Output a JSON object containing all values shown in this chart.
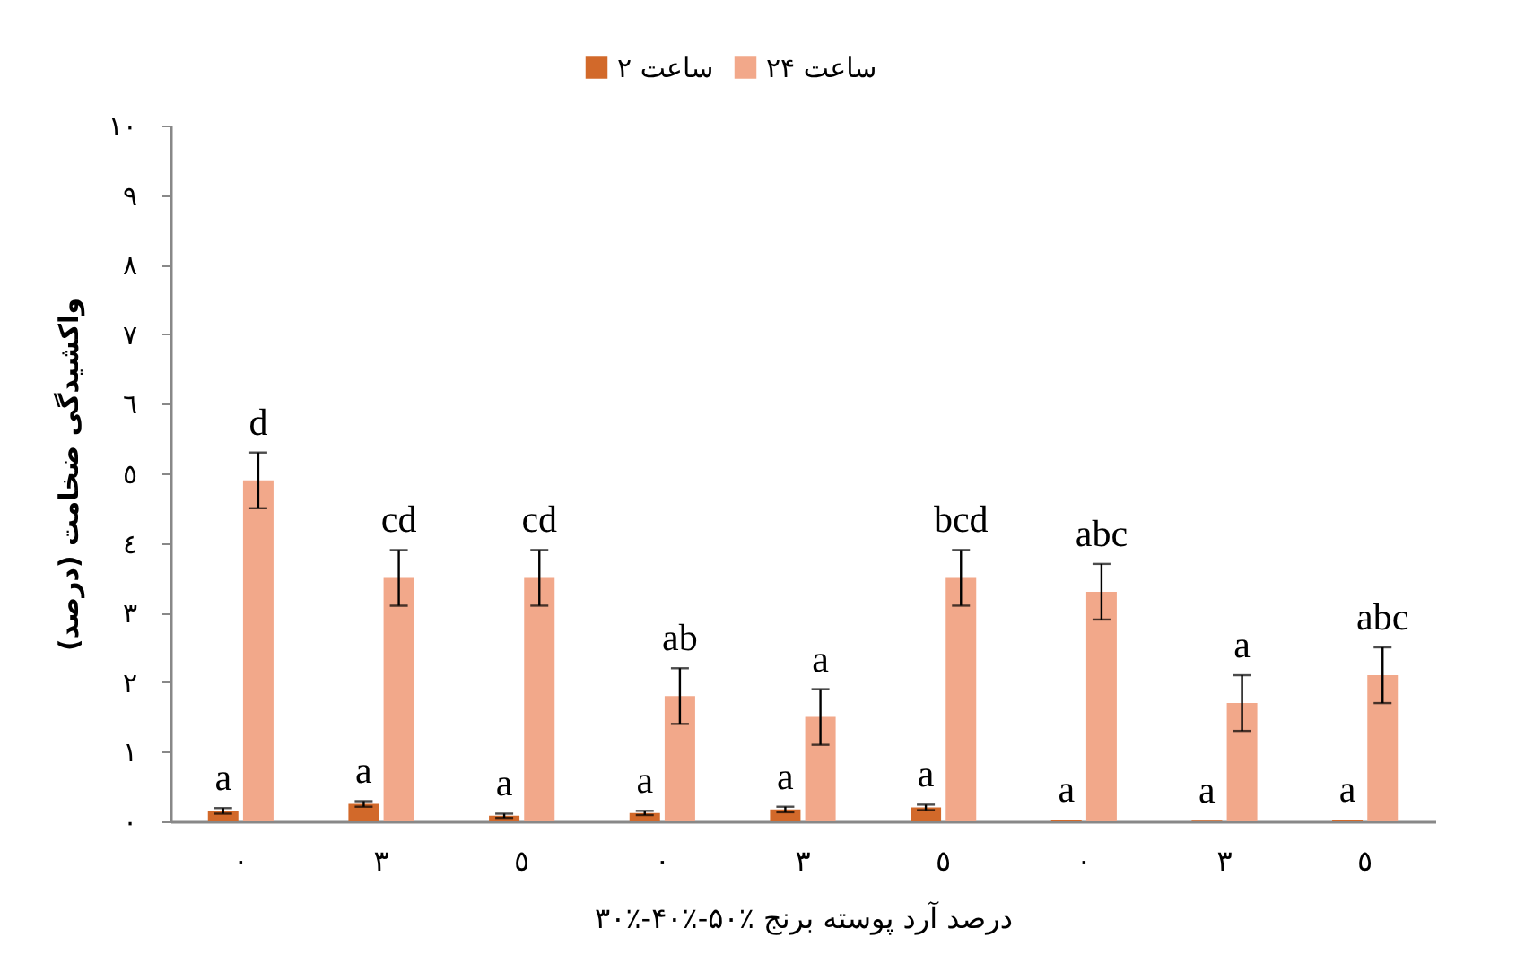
{
  "chart_data": {
    "type": "bar",
    "categories": [
      "٠",
      "٣",
      "٥",
      "٠",
      "٣",
      "٥",
      "٠",
      "٣",
      "٥"
    ],
    "xlabel": "درصد آرد پوسته برنج  ٪۵۰-٪۴۰-٪۳۰",
    "ylabel": "واکشیدگی ضخامت (درصد)",
    "ylim": [
      0,
      10
    ],
    "yticks": [
      {
        "value": 0,
        "label": "٠"
      },
      {
        "value": 1,
        "label": "١"
      },
      {
        "value": 2,
        "label": "٢"
      },
      {
        "value": 3,
        "label": "٣"
      },
      {
        "value": 4,
        "label": "٤"
      },
      {
        "value": 5,
        "label": "٥"
      },
      {
        "value": 6,
        "label": "٦"
      },
      {
        "value": 7,
        "label": "٧"
      },
      {
        "value": 8,
        "label": "٨"
      },
      {
        "value": 9,
        "label": "٩"
      },
      {
        "value": 10,
        "label": "١٠"
      }
    ],
    "grid": false,
    "legend": "top",
    "series": [
      {
        "name": "۲ ساعت",
        "color": "#d2692a",
        "values": [
          0.15,
          0.25,
          0.08,
          0.12,
          0.17,
          0.2,
          0.02,
          0.01,
          0.02
        ],
        "errors": [
          0.04,
          0.04,
          0.03,
          0.03,
          0.04,
          0.04,
          null,
          null,
          null
        ],
        "value_labels": [
          "a",
          "a",
          "a",
          "a",
          "a",
          "a",
          "a",
          "a",
          "a"
        ]
      },
      {
        "name": "۲۴ ساعت",
        "color": "#f2a88a",
        "values": [
          4.9,
          3.5,
          3.5,
          1.8,
          1.5,
          3.5,
          3.3,
          1.7,
          2.1
        ],
        "errors": [
          0.4,
          0.4,
          0.4,
          0.4,
          0.4,
          0.4,
          0.4,
          0.4,
          0.4
        ],
        "value_labels": [
          "d",
          "cd",
          "cd",
          "ab",
          "a",
          "bcd",
          "abc",
          "a",
          "abc"
        ]
      }
    ]
  }
}
